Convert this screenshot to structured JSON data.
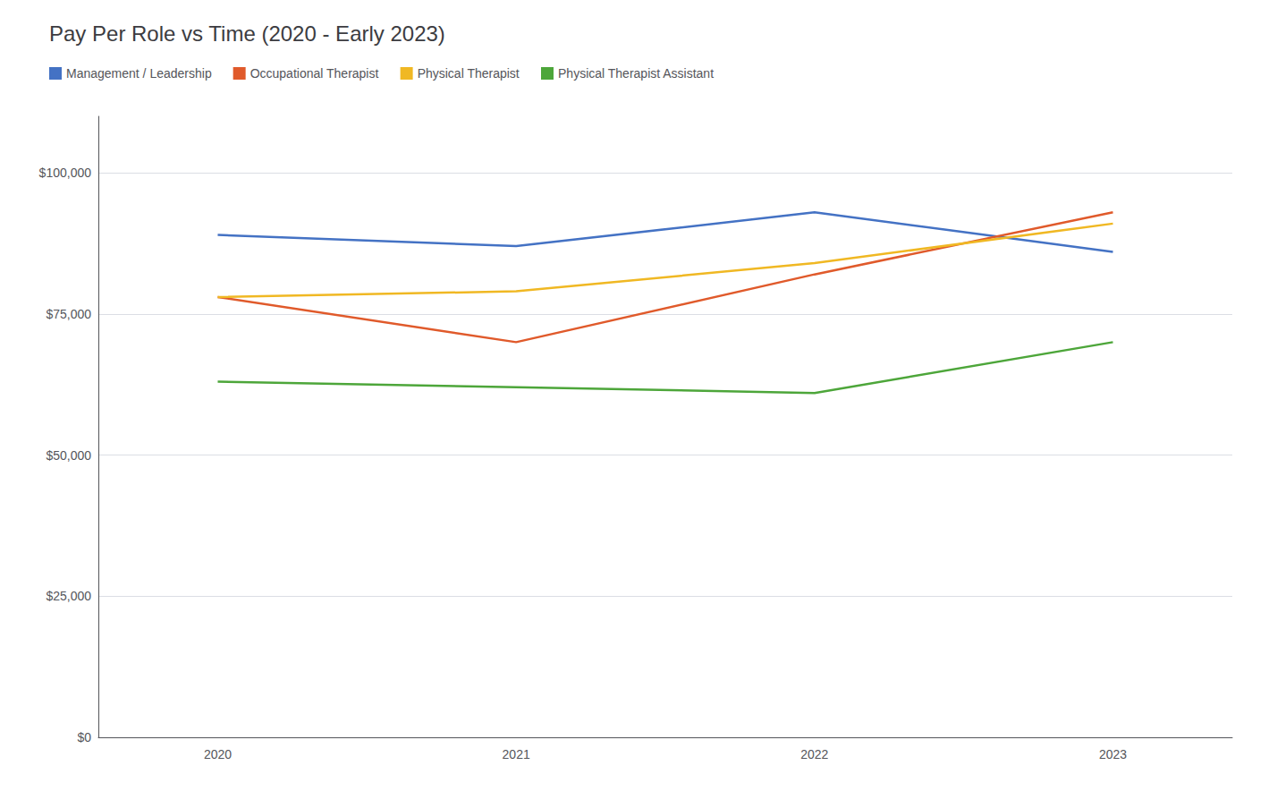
{
  "chart_data": {
    "type": "line",
    "title": "Pay Per Role vs Time (2020 - Early 2023)",
    "x": [
      2020,
      2021,
      2022,
      2023
    ],
    "series": [
      {
        "name": "Management / Leadership",
        "color": "#4472C4",
        "values": [
          89000,
          87000,
          93000,
          86000
        ]
      },
      {
        "name": "Occupational Therapist",
        "color": "#E05A2B",
        "values": [
          78000,
          70000,
          82000,
          93000
        ]
      },
      {
        "name": "Physical Therapist",
        "color": "#F0B823",
        "values": [
          78000,
          79000,
          84000,
          91000
        ]
      },
      {
        "name": "Physical Therapist Assistant",
        "color": "#4DA63A",
        "values": [
          63000,
          62000,
          61000,
          70000
        ]
      }
    ],
    "xlim": [
      2019.6,
      2023.4
    ],
    "xticks": [
      2020,
      2021,
      2022,
      2023
    ],
    "ylim": [
      0,
      110000
    ],
    "yticks": [
      {
        "value": 0,
        "label": "$0"
      },
      {
        "value": 25000,
        "label": "$25,000"
      },
      {
        "value": 50000,
        "label": "$50,000"
      },
      {
        "value": 75000,
        "label": "$75,000"
      },
      {
        "value": 100000,
        "label": "$100,000"
      }
    ],
    "grid": true,
    "legend": "upper left"
  }
}
